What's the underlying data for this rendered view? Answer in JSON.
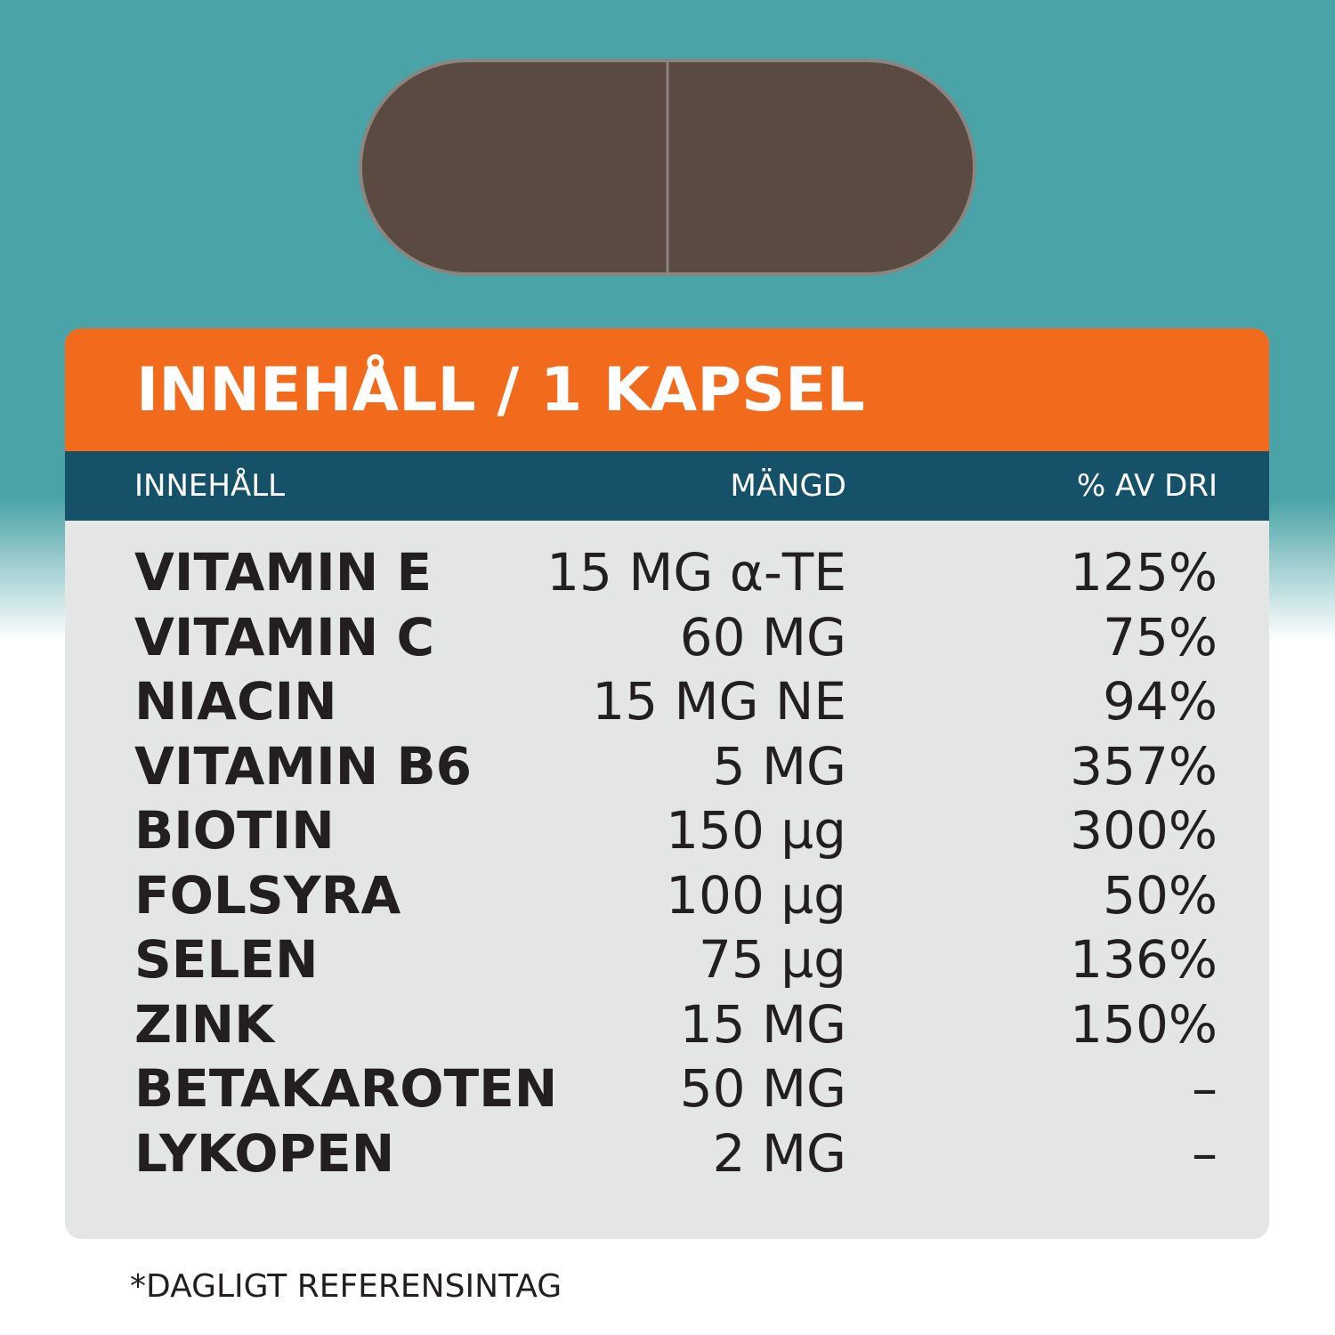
{
  "header": {
    "title": "INNEHÅLL / 1 KAPSEL"
  },
  "table": {
    "columns": [
      "INNEHÅLL",
      "MÄNGD",
      "% AV DRI"
    ],
    "rows": [
      [
        "VITAMIN E",
        "15 MG α-TE",
        "125%"
      ],
      [
        "VITAMIN C",
        "60 MG",
        "75%"
      ],
      [
        "NIACIN",
        "15 MG NE",
        "94%"
      ],
      [
        "VITAMIN B6",
        "5 MG",
        "357%"
      ],
      [
        "BIOTIN",
        "150 µg",
        "300%"
      ],
      [
        "FOLSYRA",
        "100 µg",
        "50%"
      ],
      [
        "SELEN",
        "75 µg",
        "136%"
      ],
      [
        "ZINK",
        "15 MG",
        "150%"
      ],
      [
        "BETAKAROTEN",
        "50 MG",
        "–"
      ],
      [
        "LYKOPEN",
        "2 MG",
        "–"
      ]
    ]
  },
  "footnote": "*DAGLIGT REFERENSINTAG"
}
